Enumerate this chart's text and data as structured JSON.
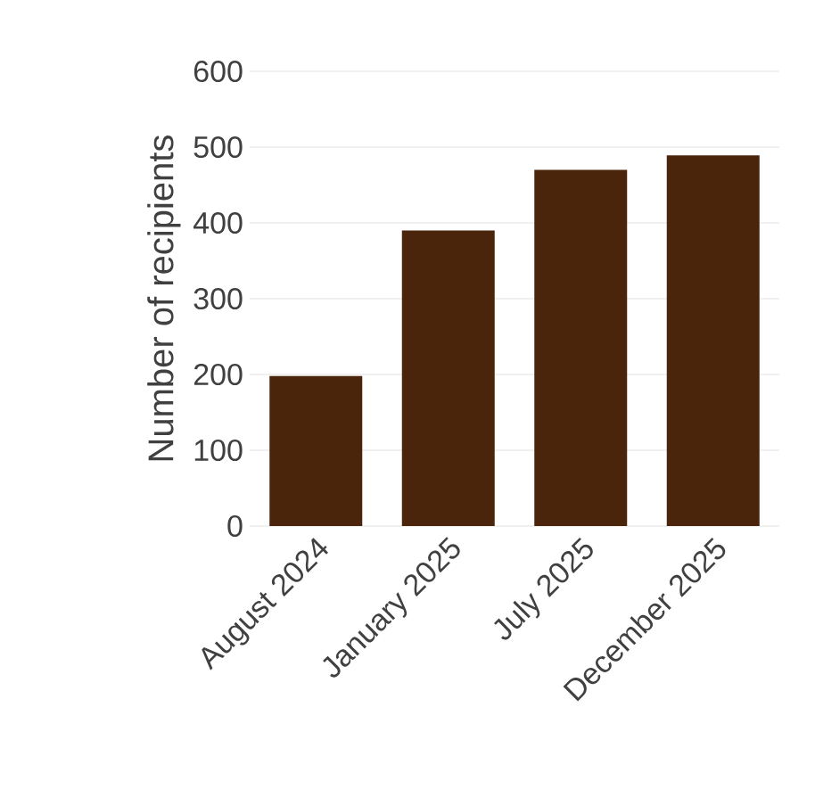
{
  "chart_data": {
    "type": "bar",
    "ylabel": "Number of recipients",
    "categories": [
      "August 2024",
      "January 2025",
      "July 2025",
      "December 2025"
    ],
    "values": [
      198,
      390,
      470,
      489
    ],
    "color": "#4a250c",
    "ylim": [
      0,
      600
    ],
    "yticks": [
      0,
      100,
      200,
      300,
      400,
      500,
      600
    ],
    "grid": "y"
  }
}
